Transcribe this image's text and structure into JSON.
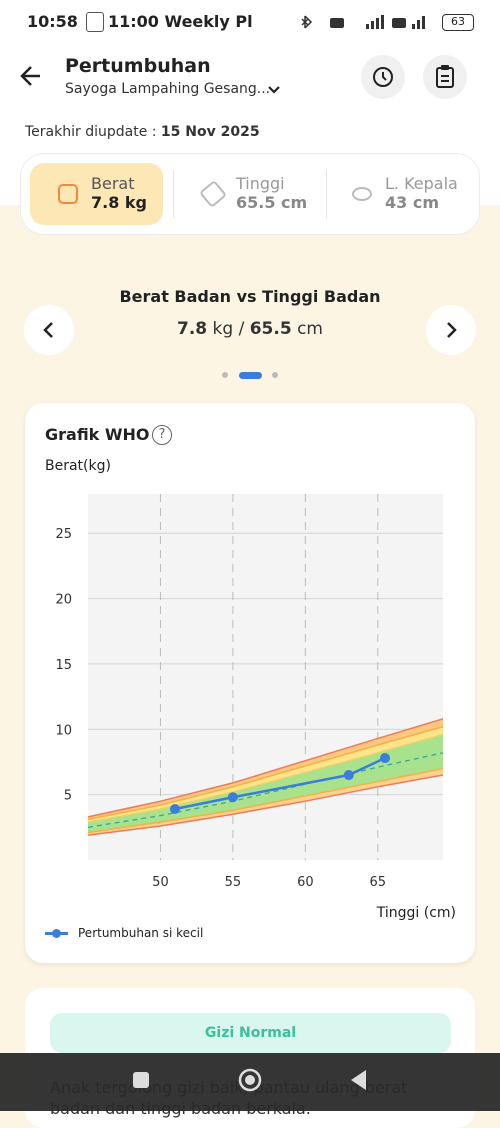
{
  "status_bar": {
    "time": "10:58",
    "notification": "11:00 Weekly Pl",
    "battery": "63"
  },
  "header": {
    "title": "Pertumbuhan",
    "subtitle": "Sayoga Lampahing Gesang..."
  },
  "last_update": {
    "label": "Terakhir diupdate :",
    "value": "15 Nov 2025"
  },
  "tabs": [
    {
      "label": "Berat",
      "value": "7.8 kg"
    },
    {
      "label": "Tinggi",
      "value": "65.5 cm"
    },
    {
      "label": "L. Kepala",
      "value": "43 cm"
    }
  ],
  "summary": {
    "title": "Berat Badan vs Tinggi Badan",
    "weight": "7.8",
    "weight_unit": "kg",
    "separator": "/",
    "height": "65.5",
    "height_unit": "cm"
  },
  "chart_data": {
    "type": "line",
    "title": "Grafik WHO",
    "y_label": "Berat(kg)",
    "x_label": "Tinggi (cm)",
    "x": [
      51,
      55,
      63,
      65.5
    ],
    "series": [
      {
        "name": "Pertumbuhan si kecil",
        "color": "#3b7ddd",
        "values": [
          3.9,
          4.8,
          6.5,
          7.8
        ]
      }
    ],
    "reference_x": [
      45,
      50,
      55,
      60,
      65,
      69.5
    ],
    "reference_curves": [
      {
        "color": "#f07a5a",
        "dashed": false,
        "values": [
          1.9,
          2.6,
          3.5,
          4.5,
          5.6,
          6.5
        ]
      },
      {
        "color": "#f5b04a",
        "dashed": false,
        "values": [
          2.1,
          2.9,
          3.8,
          4.9,
          6.0,
          7.0
        ]
      },
      {
        "color": "#3aa79a",
        "dashed": true,
        "values": [
          2.5,
          3.4,
          4.5,
          5.8,
          7.1,
          8.2
        ]
      },
      {
        "color": "#e8d36a",
        "dashed": false,
        "values": [
          2.9,
          3.9,
          5.2,
          6.7,
          8.2,
          9.6
        ]
      },
      {
        "color": "#f5b04a",
        "dashed": false,
        "values": [
          3.1,
          4.2,
          5.6,
          7.2,
          8.8,
          10.2
        ]
      },
      {
        "color": "#f07a5a",
        "dashed": false,
        "values": [
          3.3,
          4.5,
          5.9,
          7.6,
          9.3,
          10.8
        ]
      }
    ],
    "band_colors": [
      "#fbd28c",
      "#a9e28c",
      "#a9e28c",
      "#fde48a",
      "#fcc87e"
    ],
    "xlim": [
      45,
      69.5
    ],
    "xticks": [
      50,
      55,
      60,
      65
    ],
    "ylim": [
      0,
      28
    ],
    "yticks": [
      5,
      10,
      15,
      20,
      25
    ],
    "grid": true,
    "plot_background": "#f4f4f4"
  },
  "status_card": {
    "badge": "Gizi Normal",
    "text": "Anak tergolong gizi baik, pantau ulang berat badan dan tinggi badan berkala."
  }
}
